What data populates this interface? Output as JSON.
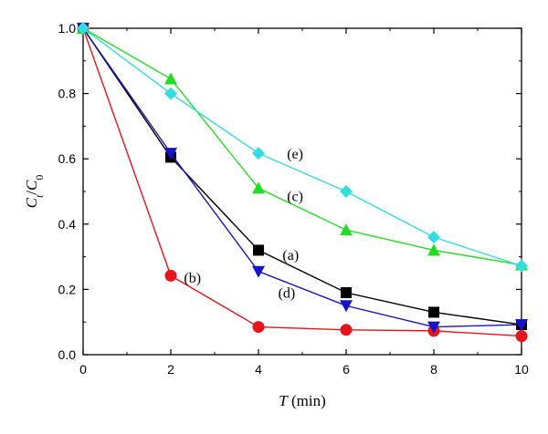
{
  "chart_data": {
    "type": "line",
    "title": "",
    "xlabel": {
      "var": "T",
      "unit": " (min)"
    },
    "ylabel": {
      "num": "C",
      "num_sub": "t",
      "sep": "/",
      "den": "C",
      "den_sub": "0"
    },
    "xlim": [
      0,
      10
    ],
    "ylim": [
      0,
      1.0
    ],
    "x_ticks": [
      "0",
      "2",
      "4",
      "6",
      "8",
      "10"
    ],
    "y_ticks": [
      "0.0",
      "0.2",
      "0.4",
      "0.6",
      "0.8",
      "1.0"
    ],
    "grid": false,
    "legend": "none",
    "x": [
      0,
      2,
      4,
      6,
      8,
      10
    ],
    "series": [
      {
        "name": "(a)",
        "values": [
          1.0,
          0.605,
          0.32,
          0.19,
          0.13,
          0.092
        ],
        "color": "#000000",
        "marker": "square"
      },
      {
        "name": "(b)",
        "values": [
          1.0,
          0.242,
          0.085,
          0.076,
          0.073,
          0.057
        ],
        "color": "#e8141b",
        "marker": "circle"
      },
      {
        "name": "(c)",
        "values": [
          1.0,
          0.845,
          0.51,
          0.382,
          0.32,
          0.275
        ],
        "color": "#22dd22",
        "marker": "triangle-up"
      },
      {
        "name": "(d)",
        "values": [
          1.0,
          0.617,
          0.255,
          0.15,
          0.085,
          0.092
        ],
        "color": "#1515c8",
        "marker": "triangle-down"
      },
      {
        "name": "(e)",
        "values": [
          1.0,
          0.8,
          0.617,
          0.5,
          0.36,
          0.272
        ],
        "color": "#33dddd",
        "marker": "diamond"
      }
    ],
    "annotations": [
      {
        "text": "(e)",
        "x": 4.65,
        "y": 0.6,
        "series": "(e)"
      },
      {
        "text": "(c)",
        "x": 4.65,
        "y": 0.47,
        "series": "(c)"
      },
      {
        "text": "(a)",
        "x": 4.55,
        "y": 0.29,
        "series": "(a)"
      },
      {
        "text": "(b)",
        "x": 2.3,
        "y": 0.22,
        "series": "(b)"
      },
      {
        "text": "(d)",
        "x": 4.45,
        "y": 0.175,
        "series": "(d)"
      }
    ]
  }
}
